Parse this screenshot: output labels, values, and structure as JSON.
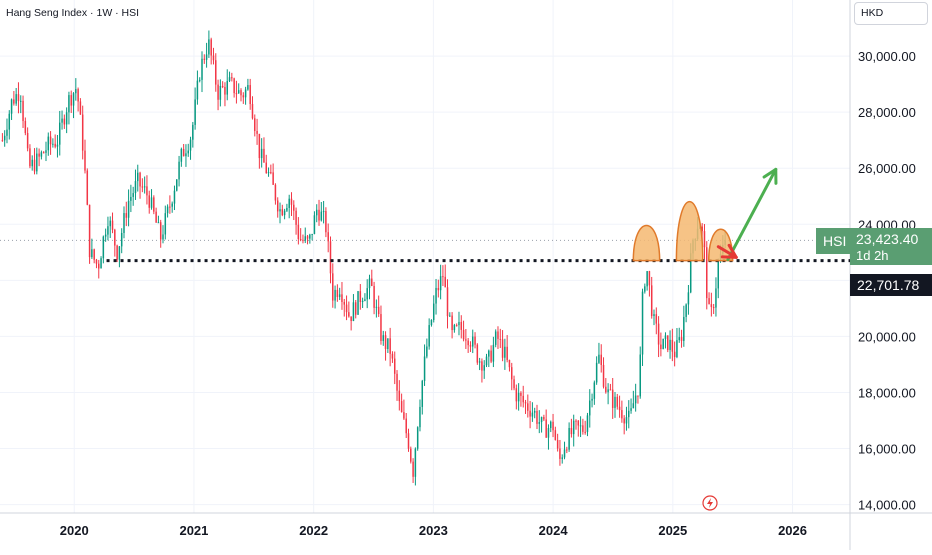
{
  "header": {
    "title": "Hang Seng Index · 1W · HSI"
  },
  "currency": {
    "label": "HKD"
  },
  "price_tag": {
    "symbol": "HSI",
    "value": "23,423.40",
    "countdown": "1d 2h"
  },
  "level_tag": {
    "value": "22,701.78"
  },
  "colors": {
    "up": "#089981",
    "down": "#f23645",
    "neckline": "#131722",
    "price_tag_bg": "#5a9e72",
    "arrow_green": "#4caf50",
    "arrow_red": "#e53935",
    "hump_fill": "#f5b971",
    "hump_stroke": "#e07a2b"
  },
  "chart_data": {
    "type": "candlestick",
    "title": "Hang Seng Index · 1W · HSI",
    "xlabel": "",
    "ylabel": "",
    "x_ticks": [
      "2020",
      "2021",
      "2022",
      "2023",
      "2024",
      "2025",
      "2026"
    ],
    "y_ticks": [
      "14,000.00",
      "16,000.00",
      "18,000.00",
      "20,000.00",
      "22,000.00",
      "24,000.00",
      "26,000.00",
      "28,000.00",
      "30,000.00"
    ],
    "y_tick_values": [
      14000,
      16000,
      18000,
      20000,
      22000,
      24000,
      26000,
      28000,
      30000
    ],
    "ylim": [
      13700,
      32000
    ],
    "xlim": [
      2019.38,
      2026.48
    ],
    "grid": true,
    "current_price": 23423.4,
    "horizontal_level": 22701.78,
    "anchors": [
      [
        2019.4,
        27000
      ],
      [
        2019.48,
        28400
      ],
      [
        2019.55,
        28800
      ],
      [
        2019.62,
        26000
      ],
      [
        2019.7,
        26300
      ],
      [
        2019.78,
        26800
      ],
      [
        2019.86,
        27000
      ],
      [
        2019.95,
        28400
      ],
      [
        2020.02,
        28900
      ],
      [
        2020.08,
        26500
      ],
      [
        2020.13,
        23000
      ],
      [
        2020.2,
        22500
      ],
      [
        2020.28,
        24300
      ],
      [
        2020.36,
        23000
      ],
      [
        2020.45,
        24800
      ],
      [
        2020.53,
        25500
      ],
      [
        2020.62,
        25000
      ],
      [
        2020.72,
        23500
      ],
      [
        2020.8,
        24700
      ],
      [
        2020.9,
        26500
      ],
      [
        2020.98,
        27200
      ],
      [
        2021.05,
        29500
      ],
      [
        2021.12,
        30500
      ],
      [
        2021.2,
        28700
      ],
      [
        2021.3,
        29000
      ],
      [
        2021.4,
        28600
      ],
      [
        2021.46,
        28900
      ],
      [
        2021.55,
        26500
      ],
      [
        2021.63,
        25700
      ],
      [
        2021.72,
        24500
      ],
      [
        2021.8,
        25000
      ],
      [
        2021.88,
        23500
      ],
      [
        2021.96,
        23300
      ],
      [
        2022.03,
        24600
      ],
      [
        2022.1,
        24000
      ],
      [
        2022.16,
        21500
      ],
      [
        2022.22,
        21800
      ],
      [
        2022.3,
        20700
      ],
      [
        2022.4,
        21500
      ],
      [
        2022.48,
        21800
      ],
      [
        2022.57,
        19900
      ],
      [
        2022.64,
        19500
      ],
      [
        2022.72,
        17400
      ],
      [
        2022.79,
        16300
      ],
      [
        2022.83,
        15200
      ],
      [
        2022.88,
        17500
      ],
      [
        2022.94,
        19500
      ],
      [
        2023.02,
        21500
      ],
      [
        2023.08,
        22200
      ],
      [
        2023.15,
        20000
      ],
      [
        2023.22,
        20300
      ],
      [
        2023.3,
        20000
      ],
      [
        2023.38,
        19200
      ],
      [
        2023.45,
        19000
      ],
      [
        2023.53,
        20000
      ],
      [
        2023.6,
        19300
      ],
      [
        2023.68,
        18000
      ],
      [
        2023.76,
        17600
      ],
      [
        2023.84,
        17300
      ],
      [
        2023.92,
        16700
      ],
      [
        2024.0,
        16800
      ],
      [
        2024.05,
        15500
      ],
      [
        2024.1,
        16200
      ],
      [
        2024.18,
        16700
      ],
      [
        2024.26,
        16700
      ],
      [
        2024.32,
        18000
      ],
      [
        2024.38,
        19300
      ],
      [
        2024.45,
        18000
      ],
      [
        2024.52,
        17600
      ],
      [
        2024.58,
        17300
      ],
      [
        2024.64,
        17000
      ],
      [
        2024.68,
        17800
      ],
      [
        2024.72,
        18300
      ],
      [
        2024.75,
        21600
      ],
      [
        2024.78,
        22500
      ],
      [
        2024.84,
        20500
      ],
      [
        2024.9,
        19600
      ],
      [
        2024.96,
        19800
      ],
      [
        2025.02,
        19400
      ],
      [
        2025.07,
        20000
      ],
      [
        2025.12,
        21500
      ],
      [
        2025.17,
        23500
      ],
      [
        2025.22,
        24200
      ],
      [
        2025.26,
        23300
      ],
      [
        2025.28,
        21800
      ],
      [
        2025.31,
        20500
      ],
      [
        2025.35,
        21500
      ],
      [
        2025.38,
        22600
      ],
      [
        2025.42,
        23100
      ],
      [
        2025.45,
        23423
      ]
    ],
    "annotations": [
      {
        "type": "hump",
        "x": 2024.78,
        "top": 23990,
        "width": 0.22
      },
      {
        "type": "hump",
        "x": 2025.14,
        "top": 24860,
        "width": 0.22
      },
      {
        "type": "hump",
        "x": 2025.4,
        "top": 23850,
        "width": 0.2
      },
      {
        "type": "arrow",
        "color": "green",
        "from": [
          2025.46,
          22740
        ],
        "to": [
          2025.86,
          25960
        ]
      },
      {
        "type": "arrow",
        "color": "red",
        "from": [
          2025.38,
          23200
        ],
        "to": [
          2025.53,
          22820
        ]
      }
    ]
  }
}
